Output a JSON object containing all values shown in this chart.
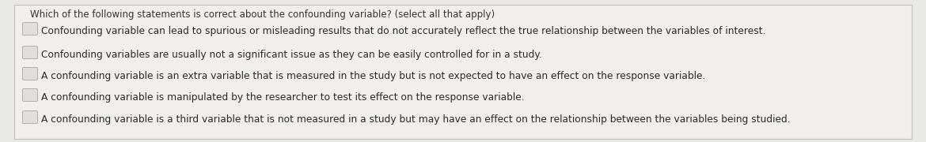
{
  "question": "Which of the following statements is correct about the confounding variable? (select all that apply)",
  "options": [
    "Confounding variable can lead to spurious or misleading results that do not accurately reflect the true relationship between the variables of interest.",
    "Confounding variables are usually not a significant issue as they can be easily controlled for in a study.",
    "A confounding variable is an extra variable that is measured in the study but is not expected to have an effect on the response variable.",
    "A confounding variable is manipulated by the researcher to test its effect on the response variable.",
    "A confounding variable is a third variable that is not measured in a study but may have an effect on the relationship between the variables being studied."
  ],
  "background_color": "#e8e8e4",
  "panel_color": "#f0efeb",
  "border_color": "#c0bfbb",
  "text_color": "#2a2a2a",
  "question_color": "#333333",
  "question_fontsize": 8.5,
  "option_fontsize": 8.8,
  "checkbox_face": "#e0deda",
  "checkbox_edge": "#b0afab"
}
